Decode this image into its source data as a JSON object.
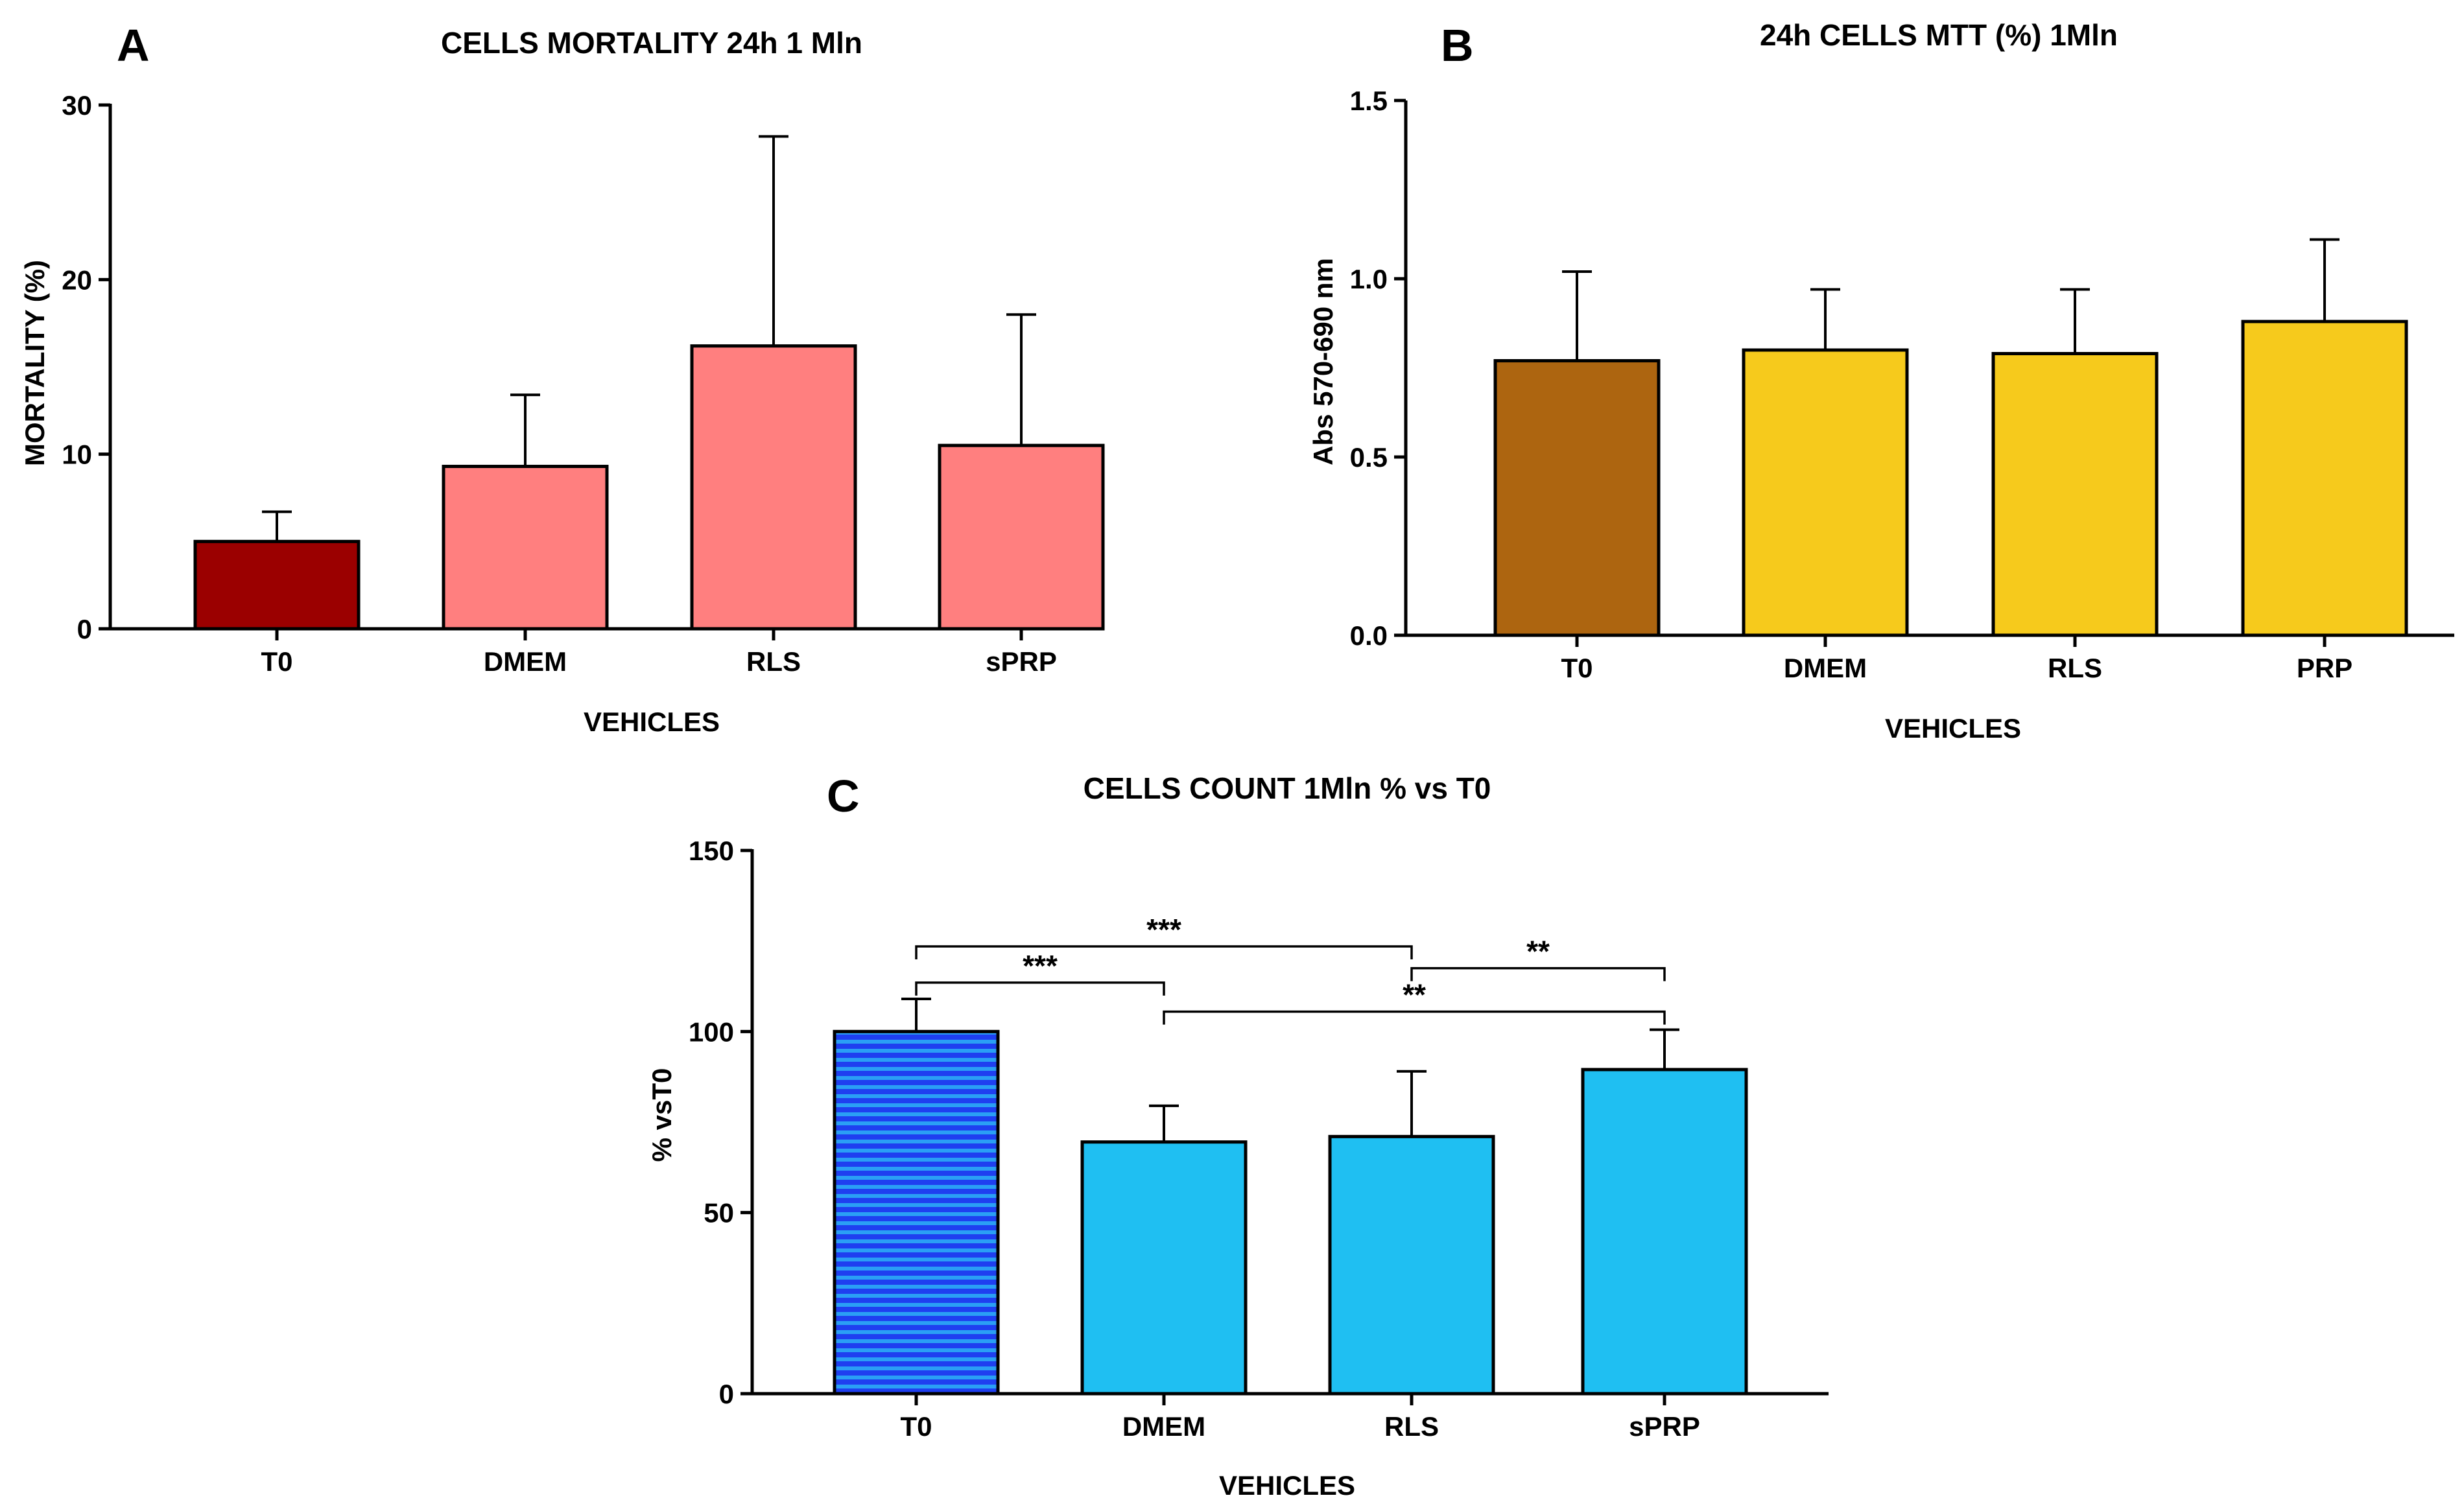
{
  "chart_data": [
    {
      "panel": "A",
      "type": "bar",
      "title": "CELLS MORTALITY 24h 1 Mln",
      "xlabel": "VEHICLES",
      "ylabel": "MORTALITY (%)",
      "ylim": [
        0,
        30
      ],
      "yticks": [
        0,
        10,
        20,
        30
      ],
      "ytick_labels": [
        "0",
        "10",
        "20",
        "30"
      ],
      "categories": [
        "T0",
        "DMEM",
        "RLS",
        "sPRP"
      ],
      "values": [
        5.0,
        9.3,
        16.2,
        10.5
      ],
      "errors": [
        1.7,
        4.1,
        12.0,
        7.5
      ],
      "colors": [
        "#9b0000",
        "#ff7f7f",
        "#ff7f7f",
        "#ff7f7f"
      ],
      "legend": "none",
      "grid": false,
      "annotations": []
    },
    {
      "panel": "B",
      "type": "bar",
      "title": "24h CELLS MTT (%) 1Mln",
      "xlabel": "VEHICLES",
      "ylabel": "Abs 570-690 nm",
      "ylim": [
        0,
        1.5
      ],
      "yticks": [
        0,
        0.5,
        1.0,
        1.5
      ],
      "ytick_labels": [
        "0.0",
        "0.5",
        "1.0",
        "1.5"
      ],
      "categories": [
        "T0",
        "DMEM",
        "RLS",
        "PRP"
      ],
      "values": [
        0.77,
        0.8,
        0.79,
        0.88
      ],
      "errors": [
        0.25,
        0.17,
        0.18,
        0.23
      ],
      "colors": [
        "#ad6510",
        "#f6ca1c",
        "#f6ca1c",
        "#f6ca1c"
      ],
      "legend": "none",
      "grid": false,
      "annotations": []
    },
    {
      "panel": "C",
      "type": "bar",
      "title": "CELLS COUNT 1Mln % vs T0",
      "xlabel": "VEHICLES",
      "ylabel": "% vsT0",
      "ylim": [
        0,
        150
      ],
      "yticks": [
        0,
        50,
        100,
        150
      ],
      "ytick_labels": [
        "0",
        "50",
        "100",
        "150"
      ],
      "categories": [
        "T0",
        "DMEM",
        "RLS",
        "sPRP"
      ],
      "values": [
        100,
        69.5,
        71,
        89.5
      ],
      "errors": [
        9,
        10,
        18,
        11
      ],
      "colors": [
        "#1f3ff0",
        "#1fbff2",
        "#1fbff2",
        "#1fbff2"
      ],
      "patterns": [
        "stripes",
        "",
        "",
        ""
      ],
      "legend": "none",
      "grid": false,
      "annotations": [
        {
          "from": "T0",
          "to": "RLS",
          "label": "***",
          "y": 123.5
        },
        {
          "from": "T0",
          "to": "DMEM",
          "label": "***",
          "y": 113.5
        },
        {
          "from": "RLS",
          "to": "sPRP",
          "label": "**",
          "y": 117.5
        },
        {
          "from": "DMEM",
          "to": "sPRP",
          "label": "**",
          "y": 105.5
        }
      ]
    }
  ]
}
